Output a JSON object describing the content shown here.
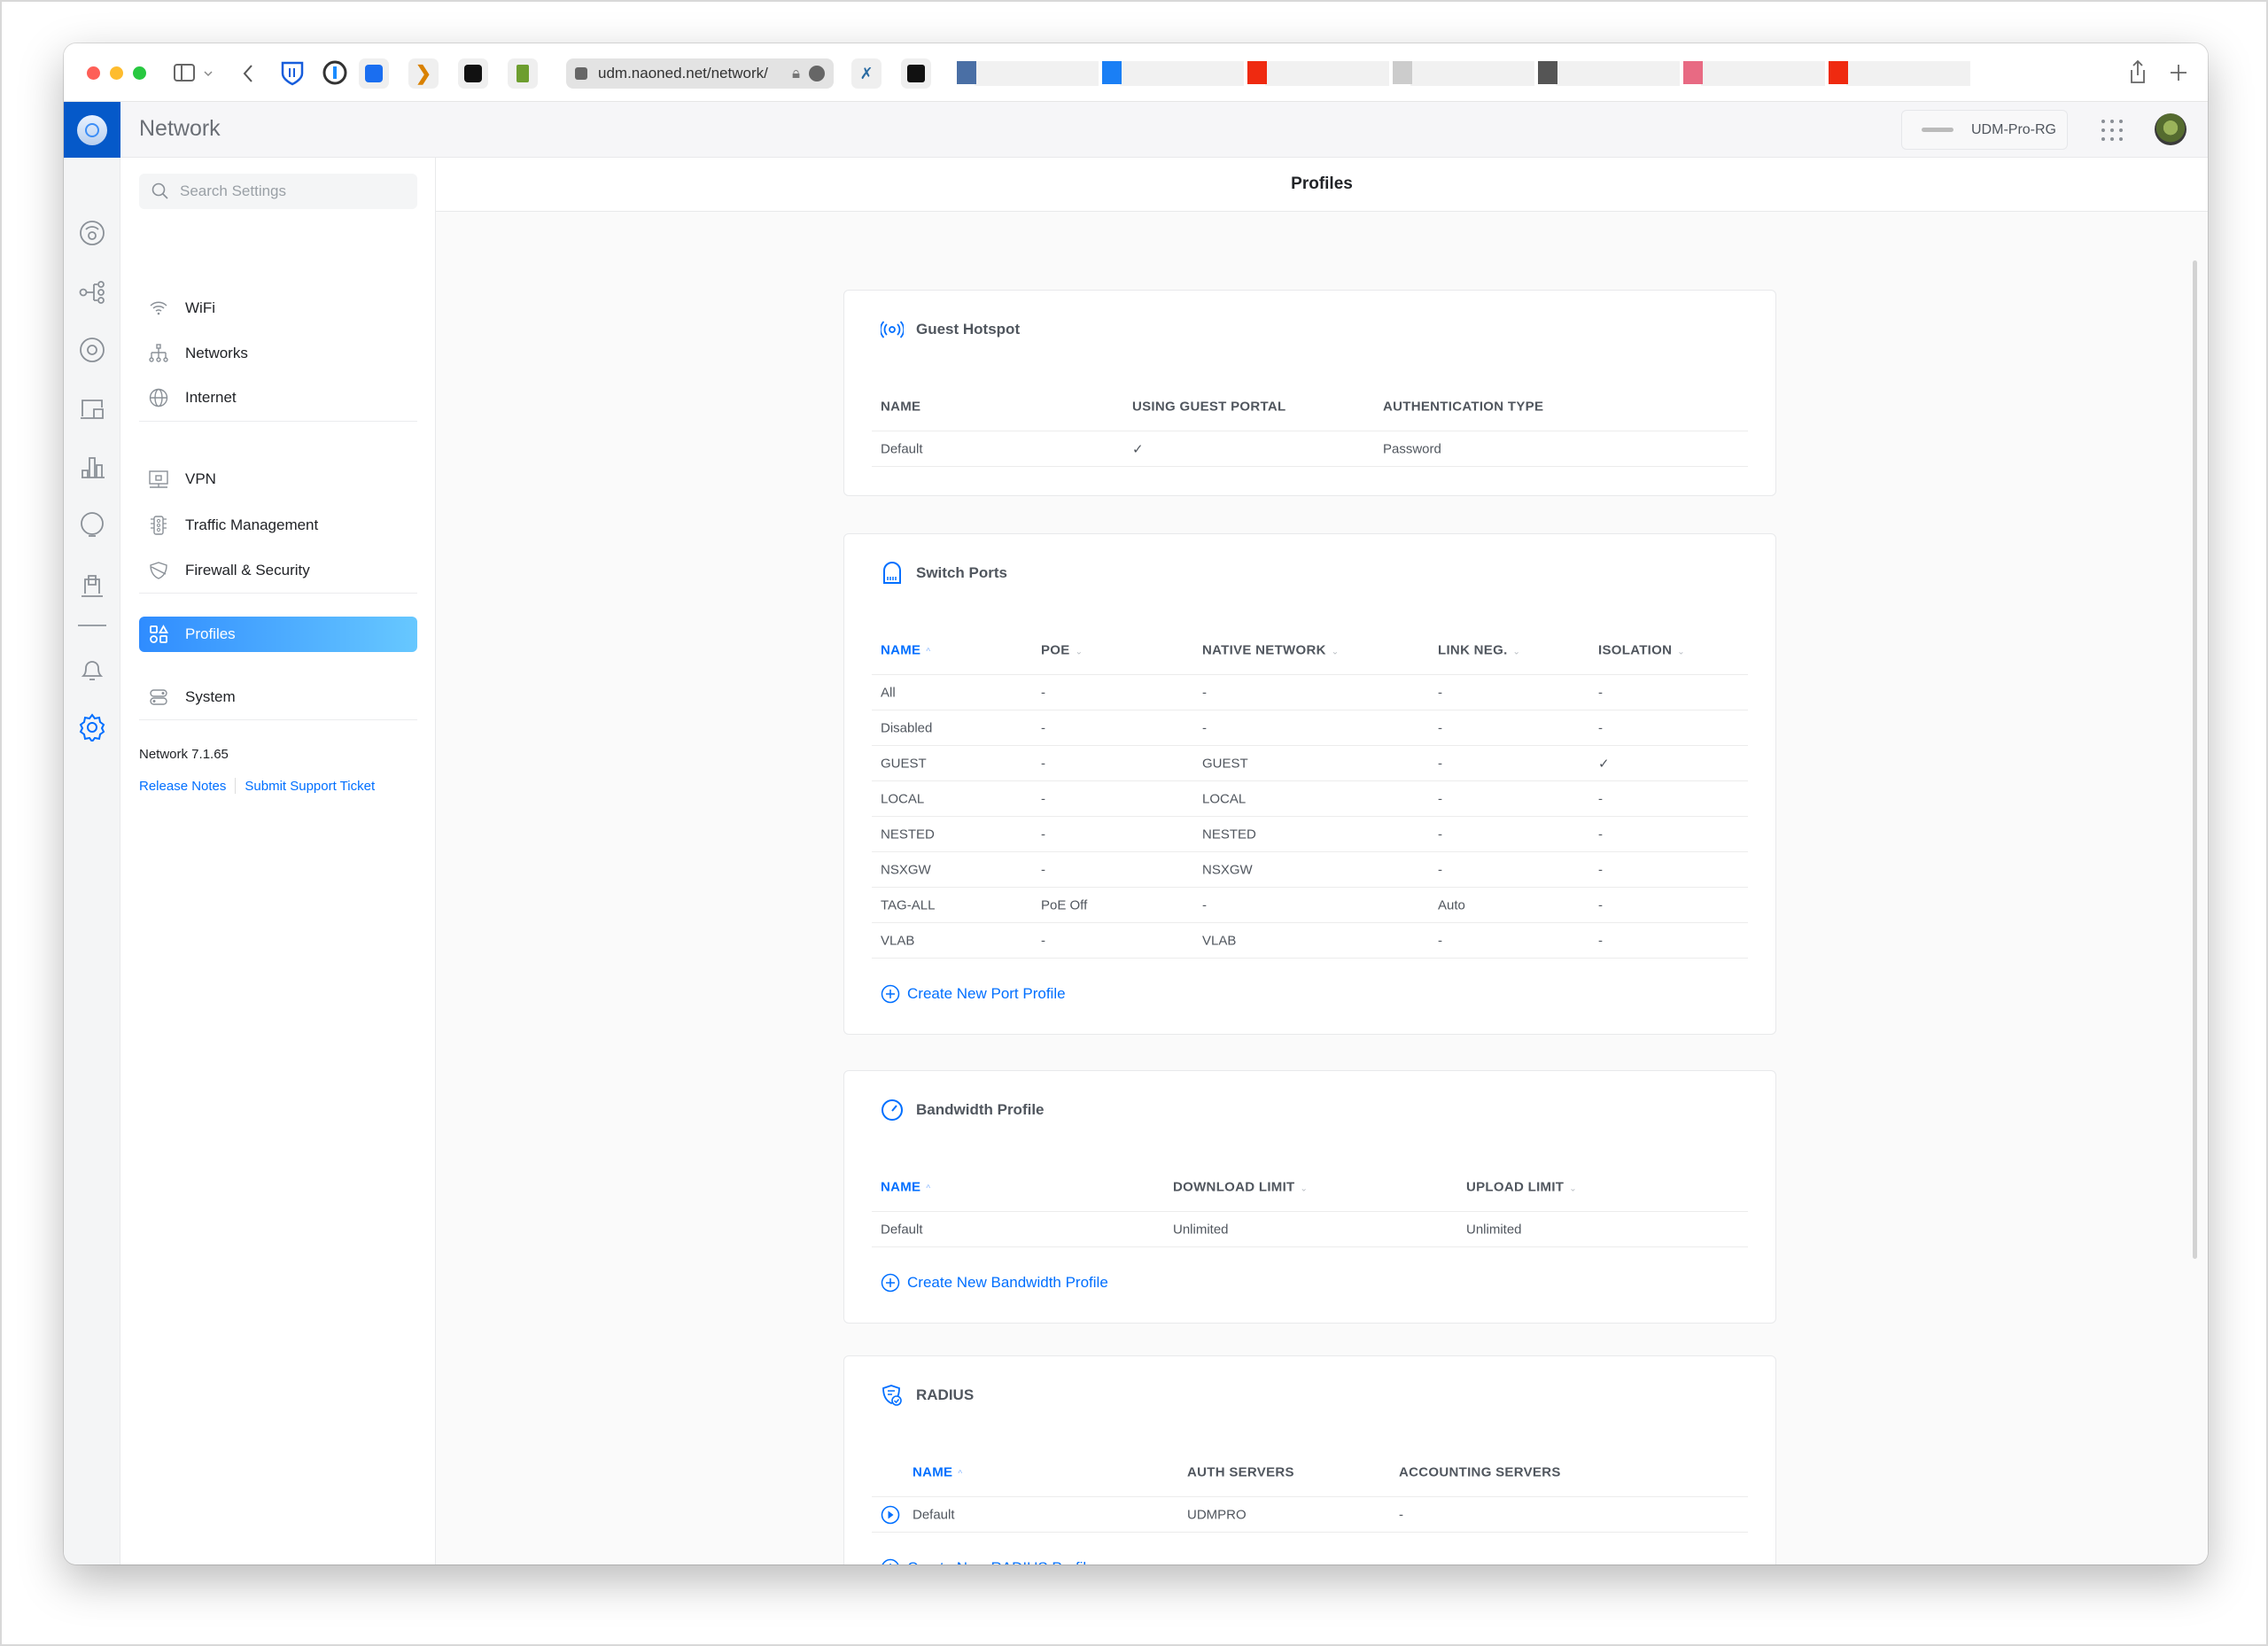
{
  "browser": {
    "url": "udm.naoned.net/network/",
    "traffic_lights": [
      "#fe5f57",
      "#febc2e",
      "#28c840"
    ],
    "tab_favicon_colors": [
      "#4a6fa5",
      "#1a7ff5",
      "#ef2a10",
      "#cccccc",
      "#555555",
      "#e86a83",
      "#ef2a10"
    ]
  },
  "app": {
    "title": "Network",
    "device": "UDM-Pro-RG",
    "accent": "#006fff"
  },
  "rail": {
    "icons": [
      "dashboard-icon",
      "topology-icon",
      "devices-icon",
      "clients-icon",
      "statistics-icon",
      "insights-icon",
      "ports-icon",
      "notifications-icon",
      "settings-icon"
    ]
  },
  "sidebar": {
    "search_placeholder": "Search Settings",
    "groups": [
      [
        {
          "label": "WiFi",
          "icon": "wifi-icon"
        },
        {
          "label": "Networks",
          "icon": "networks-icon"
        },
        {
          "label": "Internet",
          "icon": "globe-icon"
        }
      ],
      [
        {
          "label": "VPN",
          "icon": "vpn-icon"
        },
        {
          "label": "Traffic Management",
          "icon": "traffic-light-icon"
        },
        {
          "label": "Firewall & Security",
          "icon": "shield-icon"
        }
      ],
      [
        {
          "label": "Profiles",
          "icon": "profiles-icon",
          "active": true
        },
        {
          "label": "System",
          "icon": "system-icon"
        }
      ]
    ],
    "version": "Network 7.1.65",
    "release_notes": "Release Notes",
    "support": "Submit Support Ticket"
  },
  "main": {
    "title": "Profiles",
    "cards": [
      {
        "title": "Guest Hotspot",
        "icon": "hotspot-icon",
        "columns": [
          {
            "label": "NAME"
          },
          {
            "label": "USING GUEST PORTAL"
          },
          {
            "label": "AUTHENTICATION TYPE"
          }
        ],
        "rows": [
          [
            "Default",
            "✓",
            "Password"
          ]
        ]
      },
      {
        "title": "Switch Ports",
        "icon": "port-icon",
        "columns": [
          {
            "label": "NAME",
            "sort": "asc"
          },
          {
            "label": "POE",
            "sort": "none"
          },
          {
            "label": "NATIVE NETWORK",
            "sort": "none"
          },
          {
            "label": "LINK NEG.",
            "sort": "none"
          },
          {
            "label": "ISOLATION",
            "sort": "none"
          }
        ],
        "rows": [
          [
            "All",
            "-",
            "-",
            "-",
            "-"
          ],
          [
            "Disabled",
            "-",
            "-",
            "-",
            "-"
          ],
          [
            "GUEST",
            "-",
            "GUEST",
            "-",
            "✓"
          ],
          [
            "LOCAL",
            "-",
            "LOCAL",
            "-",
            "-"
          ],
          [
            "NESTED",
            "-",
            "NESTED",
            "-",
            "-"
          ],
          [
            "NSXGW",
            "-",
            "NSXGW",
            "-",
            "-"
          ],
          [
            "TAG-ALL",
            "PoE Off",
            "-",
            "Auto",
            "-"
          ],
          [
            "VLAB",
            "-",
            "VLAB",
            "-",
            "-"
          ]
        ],
        "create": "Create New Port Profile"
      },
      {
        "title": "Bandwidth Profile",
        "icon": "speedometer-icon",
        "columns": [
          {
            "label": "NAME",
            "sort": "asc"
          },
          {
            "label": "DOWNLOAD LIMIT",
            "sort": "none"
          },
          {
            "label": "UPLOAD LIMIT",
            "sort": "none"
          }
        ],
        "rows": [
          [
            "Default",
            "Unlimited",
            "Unlimited"
          ]
        ],
        "create": "Create New Bandwidth Profile"
      },
      {
        "title": "RADIUS",
        "icon": "radius-shield-icon",
        "columns": [
          {
            "label": "NAME",
            "sort": "asc"
          },
          {
            "label": "AUTH SERVERS"
          },
          {
            "label": "ACCOUNTING SERVERS"
          }
        ],
        "rows": [
          [
            "Default",
            "UDMPRO",
            "-"
          ]
        ],
        "row_expand": true,
        "create": "Create New RADIUS Profile"
      }
    ]
  }
}
